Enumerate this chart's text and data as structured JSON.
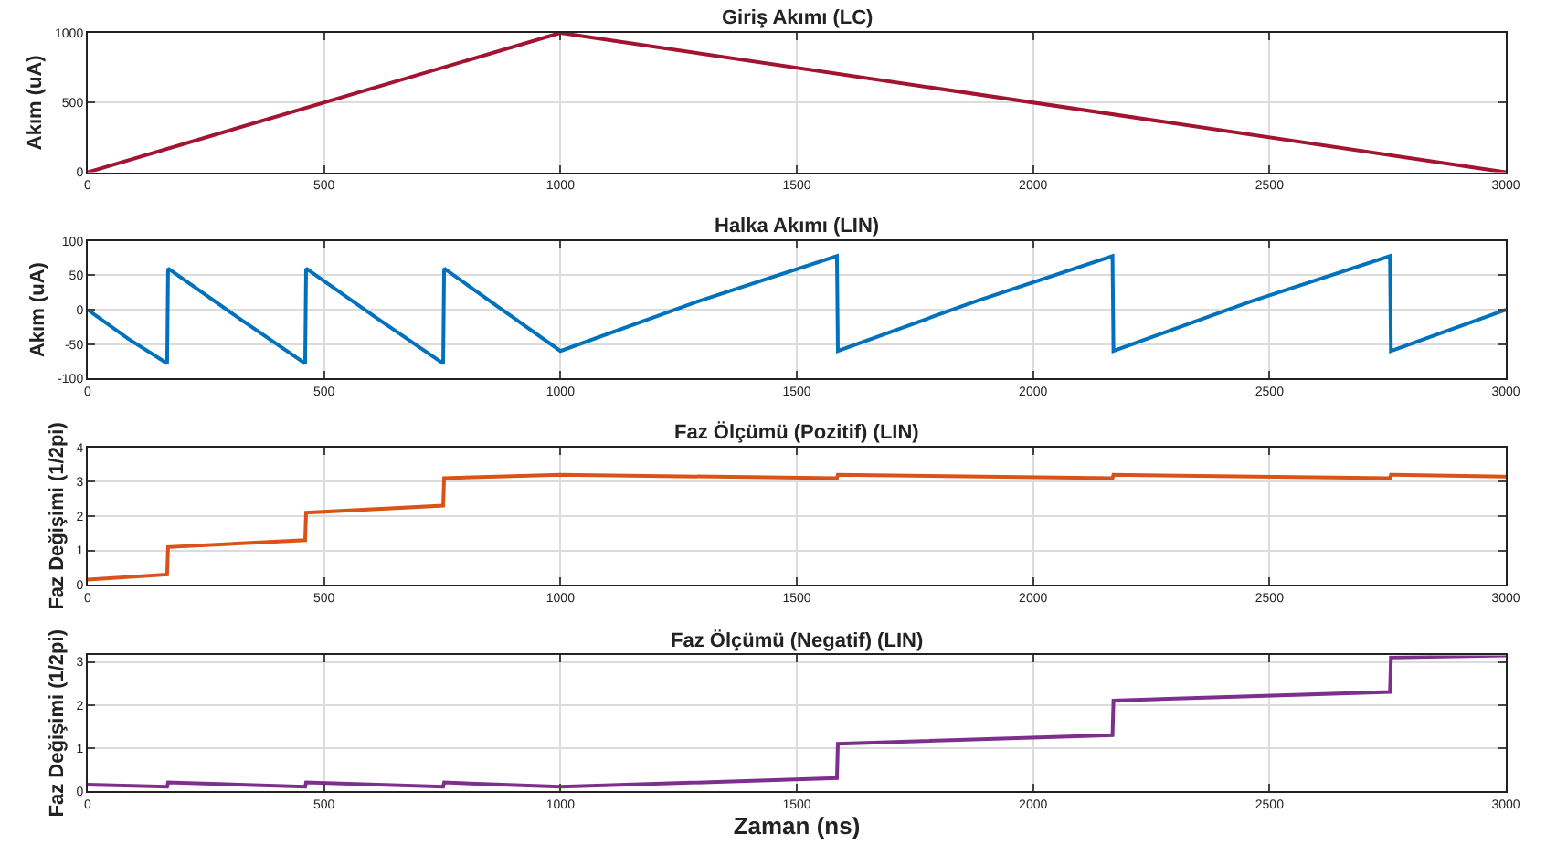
{
  "chart_data": [
    {
      "type": "line",
      "title": "Giriş Akımı (LC)",
      "ylabel": "Akım (uA)",
      "x": [
        0,
        1000,
        3000
      ],
      "series": [
        {
          "color": "#a2142f",
          "values": [
            0,
            1000,
            0
          ]
        }
      ],
      "xlim": [
        0,
        3000
      ],
      "xticks": [
        0,
        500,
        1000,
        1500,
        2000,
        2500,
        3000
      ],
      "ylim": [
        0,
        1000
      ],
      "yticks": [
        0,
        500,
        1000
      ],
      "grid": true
    },
    {
      "type": "line",
      "title": "Halka Akımı (LIN)",
      "ylabel": "Akım (uA)",
      "x": [
        0,
        85,
        168,
        170,
        315,
        460,
        462,
        607,
        752,
        754,
        877,
        1000,
        1290,
        1585,
        1587,
        1877,
        2168,
        2170,
        2460,
        2755,
        2757,
        3000
      ],
      "series": [
        {
          "color": "#0072bd",
          "values": [
            0,
            -42,
            -78,
            60,
            -10,
            -78,
            60,
            -10,
            -78,
            60,
            0,
            -60,
            12,
            78,
            -60,
            12,
            78,
            -60,
            12,
            78,
            -60,
            0
          ]
        }
      ],
      "xlim": [
        0,
        3000
      ],
      "xticks": [
        0,
        500,
        1000,
        1500,
        2000,
        2500,
        3000
      ],
      "ylim": [
        -100,
        100
      ],
      "yticks": [
        -100,
        -50,
        0,
        50,
        100
      ],
      "grid": true
    },
    {
      "type": "line",
      "title": "Faz Ölçümü (Pozitif) (LIN)",
      "ylabel": "Faz Değişimi (1/2pi)",
      "x": [
        0,
        168,
        170,
        460,
        462,
        752,
        754,
        1000,
        1585,
        1587,
        2168,
        2170,
        2755,
        2757,
        3000
      ],
      "series": [
        {
          "color": "#d95319",
          "values": [
            0.15,
            0.3,
            1.1,
            1.3,
            2.1,
            2.3,
            3.1,
            3.2,
            3.1,
            3.2,
            3.1,
            3.2,
            3.1,
            3.2,
            3.15
          ]
        }
      ],
      "xlim": [
        0,
        3000
      ],
      "xticks": [
        0,
        500,
        1000,
        1500,
        2000,
        2500,
        3000
      ],
      "ylim": [
        0,
        4
      ],
      "yticks": [
        0,
        1,
        2,
        3,
        4
      ],
      "grid": true
    },
    {
      "type": "line",
      "title": "Faz Ölçümü (Negatif) (LIN)",
      "xlabel": "Zaman (ns)",
      "ylabel": "Faz Değişimi (1/2pi)",
      "x": [
        0,
        168,
        170,
        460,
        462,
        752,
        754,
        1000,
        1585,
        1587,
        2168,
        2170,
        2755,
        2757,
        3000
      ],
      "series": [
        {
          "color": "#7e2f8e",
          "values": [
            0.15,
            0.1,
            0.2,
            0.1,
            0.2,
            0.1,
            0.2,
            0.1,
            0.3,
            1.1,
            1.3,
            2.1,
            2.3,
            3.1,
            3.15
          ]
        }
      ],
      "xlim": [
        0,
        3000
      ],
      "xticks": [
        0,
        500,
        1000,
        1500,
        2000,
        2500,
        3000
      ],
      "ylim": [
        0,
        3.15
      ],
      "yticks": [
        0,
        1,
        2,
        3
      ],
      "grid": true
    }
  ]
}
